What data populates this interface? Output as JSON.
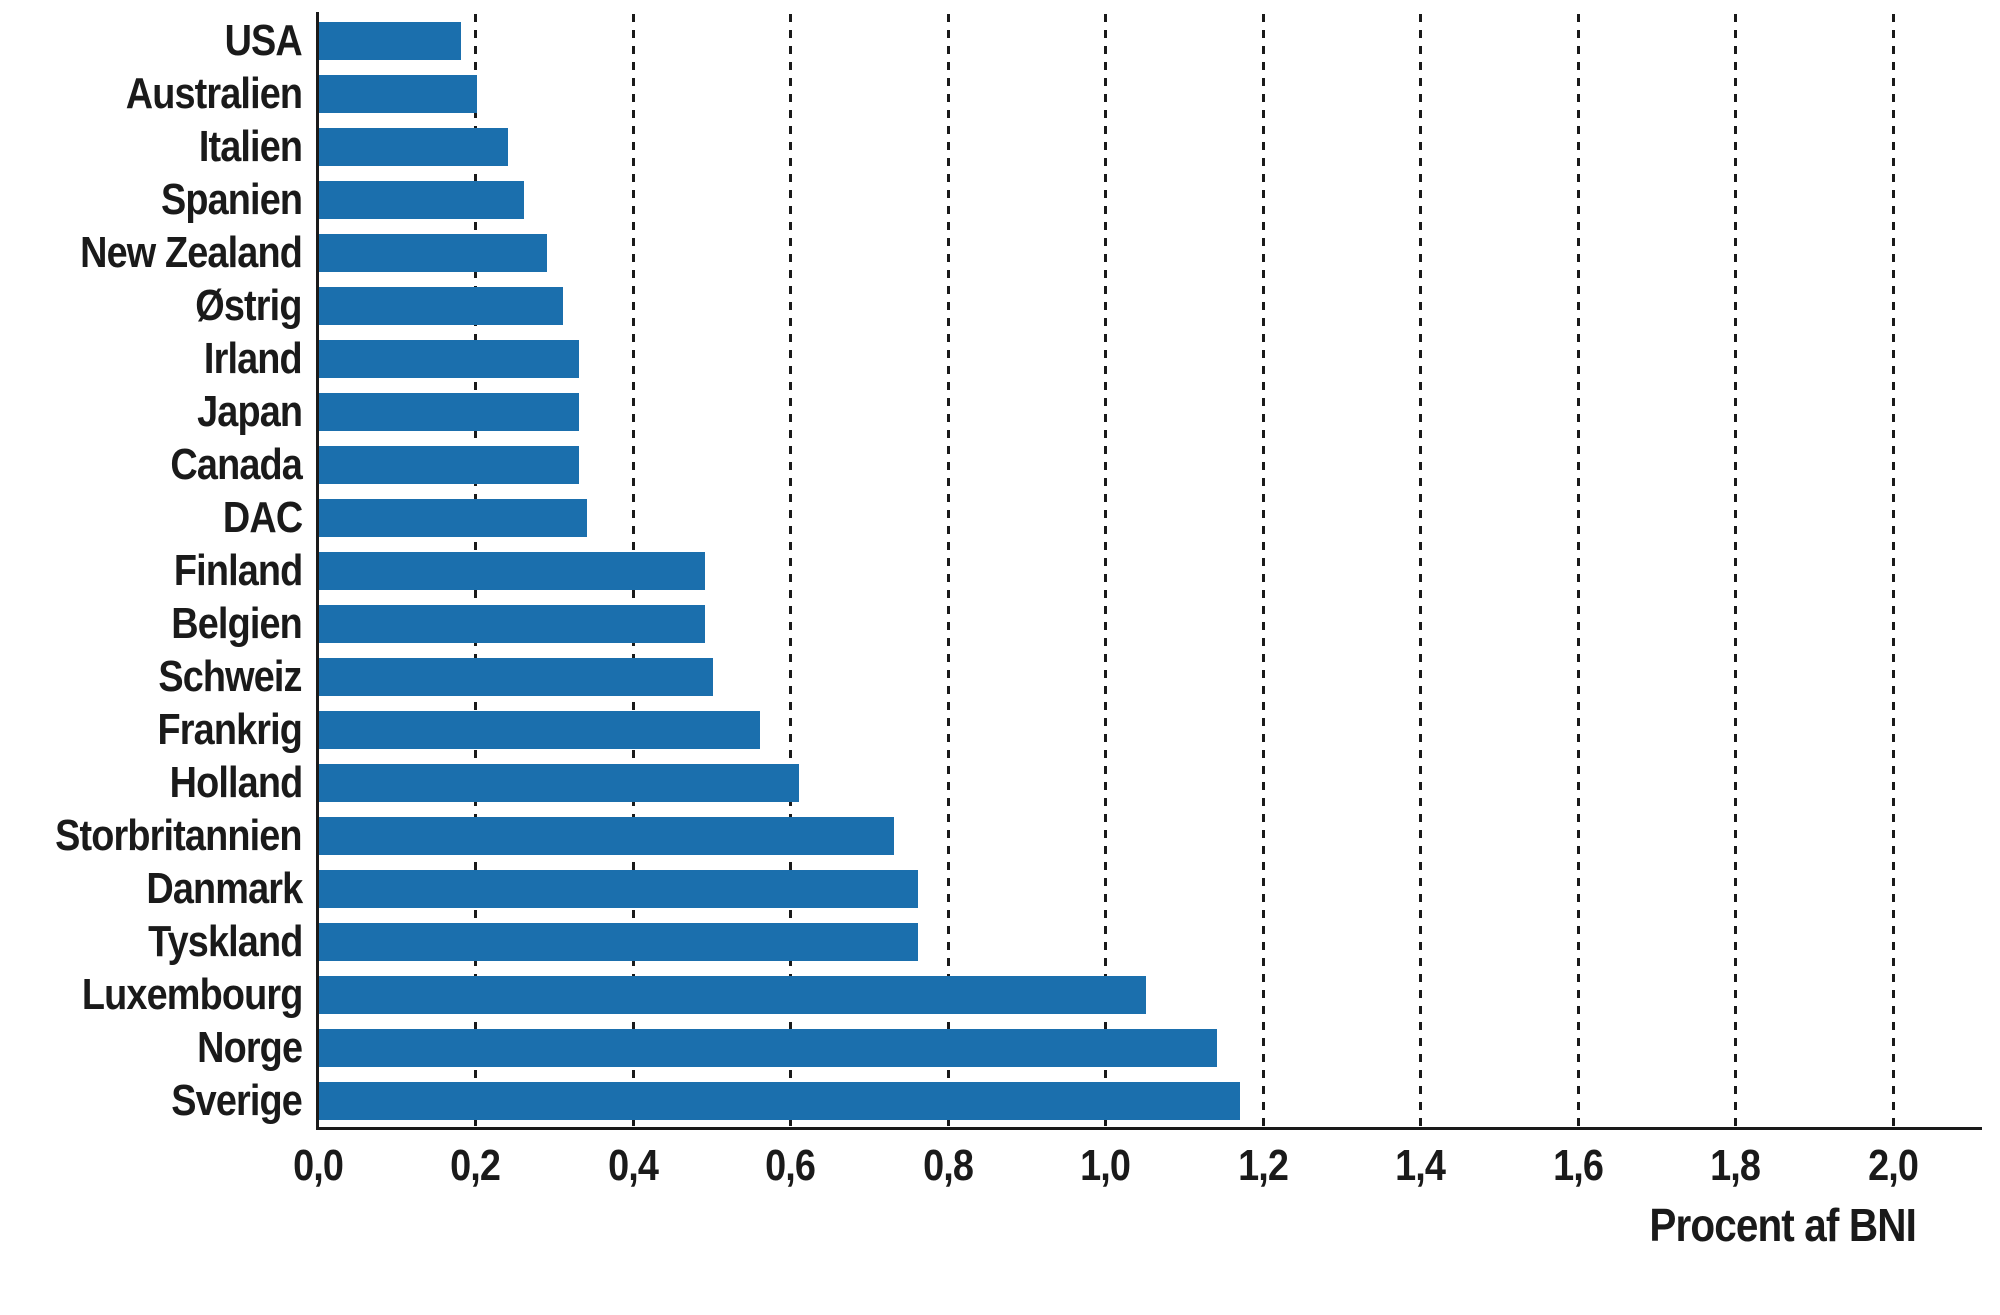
{
  "chart_data": {
    "type": "bar",
    "orientation": "horizontal",
    "title": "",
    "xlabel": "Procent af BNI",
    "categories": [
      "USA",
      "Australien",
      "Italien",
      "Spanien",
      "New Zealand",
      "Østrig",
      "Irland",
      "Japan",
      "Canada",
      "DAC",
      "Finland",
      "Belgien",
      "Schweiz",
      "Frankrig",
      "Holland",
      "Storbritannien",
      "Danmark",
      "Tyskland",
      "Luxembourg",
      "Norge",
      "Sverige"
    ],
    "values": [
      0.18,
      0.2,
      0.24,
      0.26,
      0.29,
      0.31,
      0.33,
      0.33,
      0.33,
      0.34,
      0.49,
      0.49,
      0.5,
      0.56,
      0.61,
      0.73,
      0.76,
      0.76,
      1.05,
      1.14,
      1.17
    ],
    "xlim": [
      0,
      2.11
    ],
    "xticks": [
      0,
      0.2,
      0.4,
      0.6,
      0.8,
      1.0,
      1.2,
      1.4,
      1.6,
      1.8,
      2.0
    ],
    "xtick_labels": [
      "0,0",
      "0,2",
      "0,4",
      "0,6",
      "0,8",
      "1,0",
      "1,2",
      "1,4",
      "1,6",
      "1,8",
      "2,0"
    ],
    "grid": {
      "axis": "x",
      "style": "dashed",
      "color": "#1a1a1a"
    },
    "legend": null,
    "bar_color": "#1b6fad",
    "axis_color": "#1a1a1a",
    "text_color": "#1a1a1a",
    "background": "#ffffff"
  }
}
